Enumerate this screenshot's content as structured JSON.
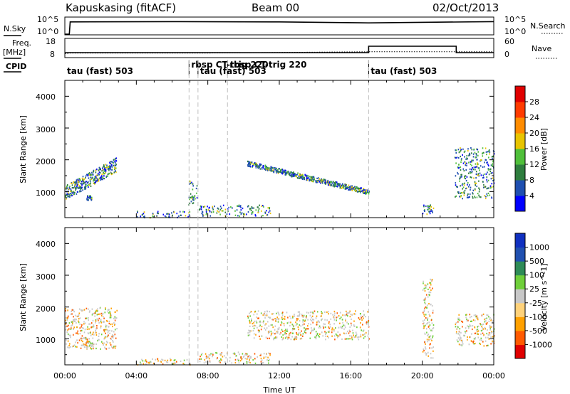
{
  "header": {
    "station": "Kapuskasing (fitACF)",
    "beam": "Beam 00",
    "date": "02/Oct/2013"
  },
  "top_panels": {
    "nsky_label": "N.Sky",
    "nsearch_label": "N.Search",
    "freq_label_line1": "Freq.",
    "freq_label_line2": "[MHz]",
    "nave_label": "Nave",
    "cpid_label": "CPID",
    "nsky_ticks": [
      "10^5",
      "10^0"
    ],
    "nsearch_ticks": [
      "10^5",
      "10^0"
    ],
    "freq_ticks": [
      "18",
      "8"
    ],
    "nave_ticks": [
      "60",
      "0"
    ],
    "cpid_segments": [
      {
        "x": 0.0,
        "label": "tau (fast) 503"
      },
      {
        "x": 6.95,
        "label": "rbsp CT-trig 220"
      },
      {
        "x": 7.45,
        "label": "tau (fast) 503"
      },
      {
        "x": 9.1,
        "label": "rbsp CT-trig 220"
      },
      {
        "x": 17.0,
        "label": "tau (fast) 503"
      }
    ],
    "nsky_series": {
      "x": [
        0.0,
        0.25,
        0.3,
        6.0,
        12.0,
        17.0,
        24.0
      ],
      "y": [
        0.0,
        0.0,
        0.78,
        0.8,
        0.78,
        0.72,
        0.8
      ]
    },
    "freq_series": {
      "x": [
        0.0,
        0.3,
        6.0,
        8.0,
        12.0,
        17.0,
        24.0
      ],
      "y": [
        10.5,
        11.0,
        11.0,
        11.0,
        11.5,
        12.0,
        12.0
      ]
    },
    "nave_series": {
      "x": [
        0.0,
        17.0,
        17.0,
        21.9,
        21.9,
        24.0
      ],
      "y": [
        20,
        20,
        50,
        50,
        20,
        20
      ]
    }
  },
  "panels": [
    {
      "ylabel": "Slant Range [km]",
      "yticks": [
        "1000",
        "2000",
        "3000",
        "4000"
      ],
      "colorbar_label": "Power [dB]",
      "colorbar_ticks": [
        "4",
        "8",
        "12",
        "16",
        "20",
        "24",
        "28"
      ],
      "colorbar_colors": [
        "#0000ff",
        "#1f4fb0",
        "#2e7d3e",
        "#4fbf3a",
        "#e8c400",
        "#ff8c00",
        "#ff3b00",
        "#e00000"
      ]
    },
    {
      "ylabel": "Slant Range [km]",
      "yticks": [
        "1000",
        "2000",
        "3000",
        "4000"
      ],
      "colorbar_label": "Velocity [m s^-1]",
      "colorbar_ticks": [
        "-1000",
        "-500",
        "-100",
        "-25",
        "25",
        "100",
        "500",
        "1000"
      ],
      "colorbar_colors": [
        "#e00000",
        "#ff5a00",
        "#ffa000",
        "#ffd27a",
        "#c8c8c8",
        "#6fcf3a",
        "#2e8b57",
        "#2050b0",
        "#1030c0"
      ]
    }
  ],
  "xaxis": {
    "label": "Time UT",
    "ticks": [
      "00:00",
      "04:00",
      "08:00",
      "12:00",
      "16:00",
      "20:00",
      "00:00"
    ]
  },
  "chart_data": {
    "type": "heatmap",
    "title": "Kapuskasing (fitACF)  Beam 00  02/Oct/2013",
    "xlabel": "Time UT",
    "ylabel": "Slant Range [km]",
    "xlim": [
      0,
      24
    ],
    "ylim": [
      180,
      4500
    ],
    "cpid_boundaries_hours": [
      6.95,
      7.45,
      9.1,
      17.0
    ],
    "power_patches": [
      {
        "t": [
          0.0,
          2.9
        ],
        "r": [
          700,
          2000
        ],
        "level": "4-24 dB",
        "note": "dense echoes rising 1000-1900 km"
      },
      {
        "t": [
          1.2,
          1.5
        ],
        "r": [
          750,
          900
        ],
        "level": "24-28 dB"
      },
      {
        "t": [
          4.0,
          7.0
        ],
        "r": [
          200,
          400
        ],
        "level": "8-16 dB"
      },
      {
        "t": [
          6.9,
          7.4
        ],
        "r": [
          600,
          1400
        ],
        "level": "4-28 dB"
      },
      {
        "t": [
          7.5,
          11.5
        ],
        "r": [
          250,
          600
        ],
        "level": "8-20 dB"
      },
      {
        "t": [
          10.2,
          17.0
        ],
        "r": [
          1000,
          1900
        ],
        "level": "4-16 dB",
        "note": "band descending from 1900 to 1000 km"
      },
      {
        "t": [
          20.0,
          20.6
        ],
        "r": [
          300,
          600
        ],
        "level": "8-16 dB"
      },
      {
        "t": [
          21.8,
          24.0
        ],
        "r": [
          800,
          2400
        ],
        "level": "4-20 dB"
      }
    ],
    "velocity_patches": [
      {
        "t": [
          0.0,
          2.9
        ],
        "r": [
          700,
          2000
        ],
        "level": "-25 to 25 m/s",
        "note": "mostly gray, some -100 and green"
      },
      {
        "t": [
          1.0,
          1.6
        ],
        "r": [
          700,
          1000
        ],
        "level": "-500 to 100 m/s"
      },
      {
        "t": [
          4.0,
          7.0
        ],
        "r": [
          200,
          400
        ],
        "level": "-100 to -500 m/s"
      },
      {
        "t": [
          7.5,
          11.5
        ],
        "r": [
          250,
          600
        ],
        "level": "25 to 100 m/s"
      },
      {
        "t": [
          10.2,
          17.0
        ],
        "r": [
          1000,
          1900
        ],
        "level": "-25 to 25 m/s"
      },
      {
        "t": [
          20.0,
          20.6
        ],
        "r": [
          400,
          2900
        ],
        "level": "-100 to -500 m/s"
      },
      {
        "t": [
          21.8,
          24.0
        ],
        "r": [
          800,
          1800
        ],
        "level": "-25 to 25 m/s",
        "note": "with -500 at lower ranges"
      }
    ]
  }
}
